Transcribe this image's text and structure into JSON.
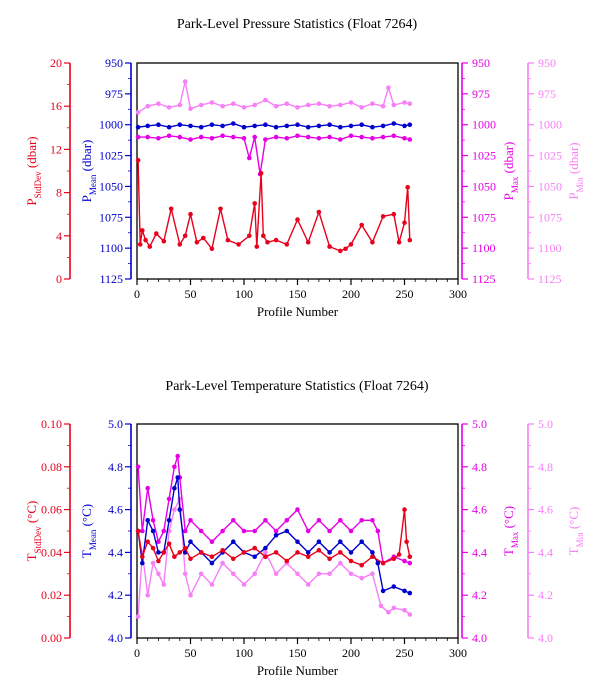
{
  "chart_data": [
    {
      "type": "line",
      "title": "Park-Level Pressure Statistics (Float 7264)",
      "xlabel": "Profile Number",
      "xlim": [
        0,
        300
      ],
      "xticks": [
        "0",
        "50",
        "100",
        "150",
        "200",
        "250",
        "300"
      ],
      "axes": [
        {
          "key": "std",
          "label": "P",
          "sub": "StdDev",
          "unit": " (dbar)",
          "color": "#e8001c",
          "ticks": [
            "20",
            "16",
            "12",
            "8",
            "4",
            "0"
          ],
          "lim": [
            0,
            20
          ]
        },
        {
          "key": "mean",
          "label": "P",
          "sub": "Mean",
          "unit": " (dbar)",
          "color": "#0000cc",
          "ticks": [
            "950",
            "975",
            "1000",
            "1025",
            "1050",
            "1075",
            "1100",
            "1125"
          ],
          "lim": [
            950,
            1125
          ],
          "inverted": true
        },
        {
          "key": "max",
          "label": "P",
          "sub": "Max",
          "unit": " (dbar)",
          "color": "#e600e6",
          "ticks": [
            "950",
            "975",
            "1000",
            "1025",
            "1050",
            "1075",
            "1100",
            "1125"
          ],
          "lim": [
            950,
            1125
          ],
          "inverted": true
        },
        {
          "key": "min",
          "label": "P",
          "sub": "Min",
          "unit": " (dbar)",
          "color": "#f77ff7",
          "ticks": [
            "950",
            "975",
            "1000",
            "1025",
            "1050",
            "1075",
            "1100",
            "1125"
          ],
          "lim": [
            950,
            1125
          ],
          "inverted": true
        }
      ],
      "series": [
        {
          "axis": "min",
          "color": "#f77ff7",
          "x": [
            1,
            10,
            20,
            30,
            40,
            45,
            50,
            60,
            70,
            80,
            90,
            100,
            110,
            120,
            130,
            140,
            150,
            160,
            170,
            180,
            190,
            200,
            210,
            220,
            230,
            235,
            240,
            250,
            255
          ],
          "values": [
            990,
            985,
            983,
            986,
            984,
            965,
            987,
            984,
            982,
            985,
            983,
            986,
            984,
            980,
            985,
            983,
            986,
            984,
            983,
            985,
            984,
            982,
            986,
            983,
            985,
            970,
            984,
            982,
            983
          ]
        },
        {
          "axis": "max",
          "color": "#e600e6",
          "x": [
            1,
            10,
            20,
            30,
            40,
            50,
            60,
            70,
            80,
            90,
            100,
            105,
            110,
            115,
            120,
            130,
            140,
            150,
            160,
            170,
            180,
            190,
            200,
            210,
            220,
            230,
            240,
            250,
            255
          ],
          "values": [
            1010,
            1010,
            1011,
            1009,
            1010,
            1012,
            1010,
            1011,
            1009,
            1010,
            1011,
            1027,
            1010,
            1040,
            1012,
            1010,
            1011,
            1009,
            1010,
            1011,
            1010,
            1012,
            1009,
            1010,
            1011,
            1010,
            1009,
            1011,
            1012
          ]
        },
        {
          "axis": "mean",
          "color": "#0000cc",
          "x": [
            1,
            10,
            20,
            30,
            40,
            50,
            60,
            70,
            80,
            90,
            100,
            110,
            120,
            130,
            140,
            150,
            160,
            170,
            180,
            190,
            200,
            210,
            220,
            230,
            240,
            250,
            255
          ],
          "values": [
            1002,
            1001,
            1000,
            1002,
            1000,
            1001,
            1002,
            1000,
            1001,
            999,
            1002,
            1001,
            1000,
            1002,
            1001,
            1000,
            1002,
            1001,
            1000,
            1002,
            1001,
            1000,
            1002,
            1001,
            999,
            1001,
            1000
          ]
        },
        {
          "axis": "std",
          "color": "#e8001c",
          "x": [
            1,
            3,
            5,
            8,
            12,
            18,
            25,
            32,
            40,
            45,
            50,
            56,
            62,
            70,
            78,
            85,
            95,
            105,
            110,
            112,
            116,
            118,
            122,
            130,
            140,
            150,
            160,
            170,
            180,
            190,
            195,
            200,
            210,
            220,
            230,
            240,
            245,
            250,
            253,
            255
          ],
          "values": [
            11,
            3.2,
            4.5,
            3.6,
            3.0,
            4.2,
            3.5,
            6.5,
            3.2,
            4.0,
            6.0,
            3.4,
            3.8,
            2.8,
            6.5,
            3.6,
            3.2,
            4.0,
            7.0,
            3.0,
            9.8,
            4.0,
            3.4,
            3.6,
            3.2,
            5.5,
            3.4,
            6.2,
            3.0,
            2.6,
            2.8,
            3.2,
            5.0,
            3.4,
            5.8,
            6.0,
            3.4,
            5.2,
            8.5,
            3.6
          ]
        }
      ]
    },
    {
      "type": "line",
      "title": "Park-Level Temperature Statistics (Float 7264)",
      "xlabel": "Profile Number",
      "xlim": [
        0,
        300
      ],
      "xticks": [
        "0",
        "50",
        "100",
        "150",
        "200",
        "250",
        "300"
      ],
      "axes": [
        {
          "key": "std",
          "label": "T",
          "sub": "StdDev",
          "unit": " (°C)",
          "color": "#e8001c",
          "ticks": [
            "0.10",
            "0.08",
            "0.06",
            "0.04",
            "0.02",
            "0.00"
          ],
          "lim": [
            0,
            0.1
          ]
        },
        {
          "key": "mean",
          "label": "T",
          "sub": "Mean",
          "unit": " (°C)",
          "color": "#0000cc",
          "ticks": [
            "5.0",
            "4.8",
            "4.6",
            "4.4",
            "4.2",
            "4.0"
          ],
          "lim": [
            4.0,
            5.0
          ]
        },
        {
          "key": "max",
          "label": "T",
          "sub": "Max",
          "unit": " (°C)",
          "color": "#e600e6",
          "ticks": [
            "5.0",
            "4.8",
            "4.6",
            "4.4",
            "4.2",
            "4.0"
          ],
          "lim": [
            4.0,
            5.0
          ]
        },
        {
          "key": "min",
          "label": "T",
          "sub": "Min",
          "unit": " (°C)",
          "color": "#f77ff7",
          "ticks": [
            "5.0",
            "4.8",
            "4.6",
            "4.4",
            "4.2",
            "4.0"
          ],
          "lim": [
            4.0,
            5.0
          ]
        }
      ],
      "series": [
        {
          "axis": "min",
          "color": "#f77ff7",
          "x": [
            1,
            5,
            10,
            15,
            20,
            25,
            30,
            35,
            40,
            45,
            50,
            60,
            70,
            80,
            90,
            100,
            110,
            120,
            130,
            140,
            150,
            160,
            170,
            180,
            190,
            200,
            210,
            220,
            228,
            235,
            240,
            250,
            255
          ],
          "values": [
            4.1,
            4.4,
            4.2,
            4.35,
            4.3,
            4.25,
            4.5,
            4.6,
            4.65,
            4.3,
            4.2,
            4.3,
            4.25,
            4.35,
            4.3,
            4.25,
            4.3,
            4.4,
            4.3,
            4.35,
            4.3,
            4.25,
            4.3,
            4.3,
            4.35,
            4.3,
            4.28,
            4.3,
            4.15,
            4.12,
            4.14,
            4.13,
            4.11
          ]
        },
        {
          "axis": "max",
          "color": "#e600e6",
          "x": [
            1,
            5,
            10,
            15,
            20,
            25,
            30,
            35,
            38,
            40,
            45,
            50,
            60,
            70,
            80,
            90,
            100,
            110,
            120,
            130,
            140,
            150,
            160,
            170,
            180,
            190,
            200,
            210,
            220,
            225,
            230,
            240,
            250,
            255
          ],
          "values": [
            4.8,
            4.5,
            4.7,
            4.55,
            4.45,
            4.5,
            4.65,
            4.8,
            4.85,
            4.75,
            4.5,
            4.55,
            4.5,
            4.45,
            4.5,
            4.55,
            4.5,
            4.5,
            4.55,
            4.5,
            4.55,
            4.6,
            4.5,
            4.55,
            4.5,
            4.55,
            4.5,
            4.55,
            4.55,
            4.5,
            4.35,
            4.38,
            4.36,
            4.35
          ]
        },
        {
          "axis": "mean",
          "color": "#0000cc",
          "x": [
            1,
            5,
            10,
            15,
            20,
            25,
            30,
            35,
            38,
            40,
            45,
            50,
            60,
            70,
            80,
            90,
            100,
            110,
            120,
            130,
            140,
            150,
            160,
            170,
            180,
            190,
            200,
            210,
            220,
            225,
            230,
            240,
            250,
            255
          ],
          "values": [
            4.5,
            4.35,
            4.55,
            4.5,
            4.4,
            4.4,
            4.55,
            4.7,
            4.75,
            4.6,
            4.4,
            4.45,
            4.4,
            4.35,
            4.4,
            4.45,
            4.4,
            4.38,
            4.42,
            4.48,
            4.5,
            4.45,
            4.4,
            4.45,
            4.4,
            4.45,
            4.4,
            4.45,
            4.4,
            4.35,
            4.22,
            4.24,
            4.22,
            4.21
          ]
        },
        {
          "axis": "std",
          "color": "#e8001c",
          "x": [
            1,
            5,
            10,
            15,
            20,
            25,
            30,
            35,
            40,
            45,
            50,
            60,
            70,
            80,
            90,
            100,
            110,
            120,
            130,
            140,
            150,
            160,
            170,
            180,
            190,
            200,
            210,
            220,
            230,
            240,
            245,
            250,
            252,
            255
          ],
          "values": [
            0.05,
            0.038,
            0.045,
            0.042,
            0.036,
            0.04,
            0.044,
            0.038,
            0.04,
            0.042,
            0.037,
            0.04,
            0.038,
            0.041,
            0.037,
            0.04,
            0.042,
            0.038,
            0.04,
            0.036,
            0.04,
            0.038,
            0.041,
            0.037,
            0.04,
            0.036,
            0.034,
            0.038,
            0.035,
            0.037,
            0.039,
            0.06,
            0.045,
            0.038
          ]
        }
      ]
    }
  ]
}
